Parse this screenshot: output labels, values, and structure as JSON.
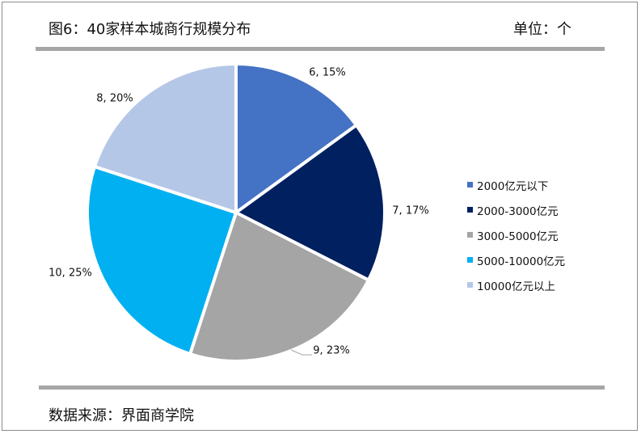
{
  "header": {
    "title": "图6：40家样本城商行规模分布",
    "unit": "单位：个"
  },
  "footer": {
    "source": "数据来源：界面商学院"
  },
  "chart_data": {
    "type": "pie",
    "categories": [
      "2000亿元以下",
      "2000-3000亿元",
      "3000-5000亿元",
      "5000-10000亿元",
      "10000亿元以上"
    ],
    "values": [
      6,
      7,
      9,
      10,
      8
    ],
    "percents": [
      "15%",
      "17%",
      "23%",
      "25%",
      "20%"
    ],
    "data_labels": [
      "6, 15%",
      "7, 17%",
      "9, 23%",
      "10, 25%",
      "8, 20%"
    ],
    "colors": [
      "#4472c4",
      "#002060",
      "#a5a5a5",
      "#00b0f0",
      "#b4c7e7"
    ],
    "legend_position": "right"
  }
}
